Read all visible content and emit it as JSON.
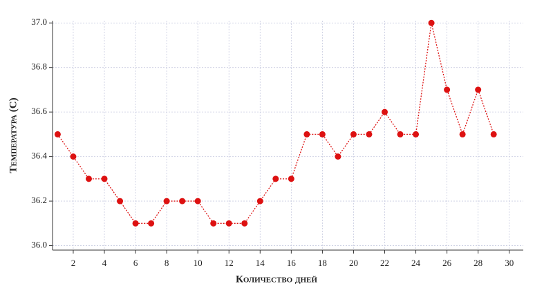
{
  "chart_data": {
    "type": "line",
    "xlabel": "Количество дней",
    "ylabel": "Температура (C)",
    "x": [
      1,
      2,
      3,
      4,
      5,
      6,
      7,
      8,
      9,
      10,
      11,
      12,
      13,
      14,
      15,
      16,
      17,
      18,
      19,
      20,
      21,
      22,
      23,
      24,
      25,
      26,
      27,
      28,
      29
    ],
    "series": [
      {
        "name": "Температура",
        "color": "#dd1111",
        "values": [
          36.5,
          36.4,
          36.3,
          36.3,
          36.2,
          36.1,
          36.1,
          36.2,
          36.2,
          36.2,
          36.1,
          36.1,
          36.1,
          36.2,
          36.3,
          36.3,
          36.5,
          36.5,
          36.4,
          36.5,
          36.5,
          36.6,
          36.5,
          36.5,
          37.0,
          36.7,
          36.5,
          36.7,
          36.5
        ]
      }
    ],
    "xlim": [
      0.67,
      30.9
    ],
    "xticks": [
      2,
      4,
      6,
      8,
      10,
      12,
      14,
      16,
      18,
      20,
      22,
      24,
      26,
      28,
      30
    ],
    "ylim": [
      35.98,
      37.01
    ],
    "yticks": [
      {
        "value": 36.0,
        "label": "36.0"
      },
      36.2,
      36.4,
      36.6,
      36.8,
      {
        "value": 37.0,
        "label": "37.0"
      }
    ],
    "grid": true
  }
}
